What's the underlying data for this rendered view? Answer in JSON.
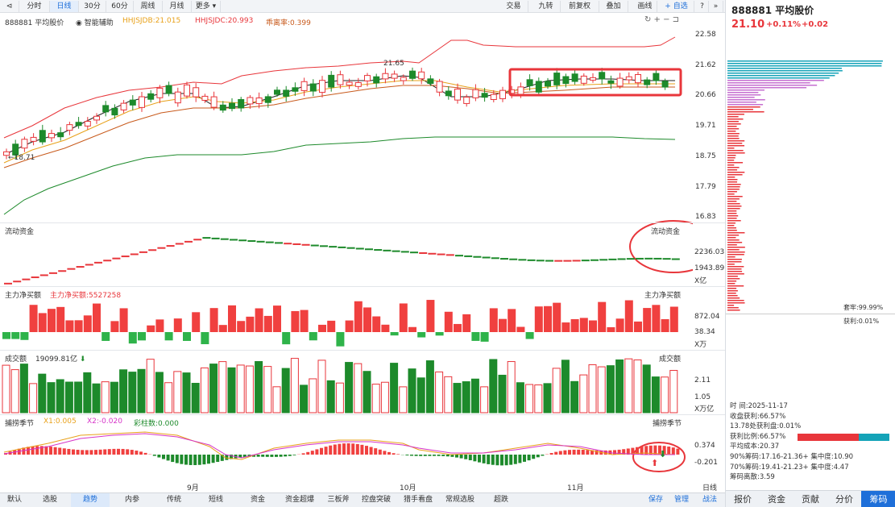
{
  "toolbar": {
    "tabs": [
      "分时",
      "日线",
      "30分",
      "60分",
      "周线",
      "月线",
      "更多"
    ],
    "right": [
      "交易",
      "九转",
      "前复权",
      "叠加",
      "画线"
    ],
    "add_watch": "自选"
  },
  "chart_header": {
    "code_name": "888881 平均股价",
    "assist": "智能辅助",
    "hhjsjdb": "HHJSJDB:21.015",
    "hhjsjdc": "HHJSJDC:20.993",
    "ratio": "乖离率:0.399"
  },
  "price_axis": [
    "22.58",
    "21.62",
    "20.66",
    "19.71",
    "18.75",
    "17.79",
    "16.83"
  ],
  "price_annotations": {
    "high": "21.65",
    "low": "18.71"
  },
  "flow": {
    "title": "流动资金",
    "title_right": "流动资金",
    "axis": [
      "2236.03",
      "1943.89"
    ],
    "unit": "X亿"
  },
  "main_net": {
    "title": "主力净买额",
    "value": "主力净买额:5527258",
    "title_right": "主力净买额",
    "axis": [
      "872.04",
      "38.34"
    ],
    "unit": "X万"
  },
  "volume": {
    "title": "成交额",
    "value": "19099.81亿",
    "title_right": "成交额",
    "axis": [
      "2.11",
      "1.05"
    ],
    "unit": "X万亿"
  },
  "season": {
    "title": "捕捞季节",
    "x1": "X1:0.005",
    "x2": "X2:-0.020",
    "bar": "彩柱数:0.000",
    "title_right": "捕捞季节",
    "axis": [
      "0.374",
      "-0.201"
    ]
  },
  "months": [
    "9月",
    "10月",
    "11月"
  ],
  "right_panel": {
    "code": "888881",
    "name": "平均股价",
    "price": "21.10",
    "pct": "+0.11%",
    "chg": "+0.02",
    "profit_top": "套牢:99.99%",
    "profit_mid": "获利:0.01%",
    "stats": [
      "时   间:2025-11-17",
      "收盘获利:66.57%",
      "13.78处获利盘:0.01%",
      "获利比例:66.57%",
      "平均成本:20.37",
      "90%筹码:17.16-21.36+",
      "集中度:10.90",
      "70%筹码:19.41-21.23+",
      "集中度:4.47",
      "筹码离散:3.59"
    ],
    "tabs": [
      "报价",
      "资金",
      "贡献",
      "分价",
      "筹码"
    ]
  },
  "bottom_tabs": [
    "默认",
    "选股",
    "趋势",
    "内参",
    "传统",
    "短线",
    "资金",
    "资金超爆",
    "三板斧",
    "控盘突破",
    "猎手看盘",
    "常规选股",
    "超跌"
  ],
  "bottom_right": [
    "保存",
    "管理",
    "战法"
  ],
  "bottom_period": "日线",
  "colors": {
    "up": "#e8363b",
    "down": "#1d8a2b",
    "blue": "#1e6fd9",
    "highlight": "#e8363b"
  }
}
